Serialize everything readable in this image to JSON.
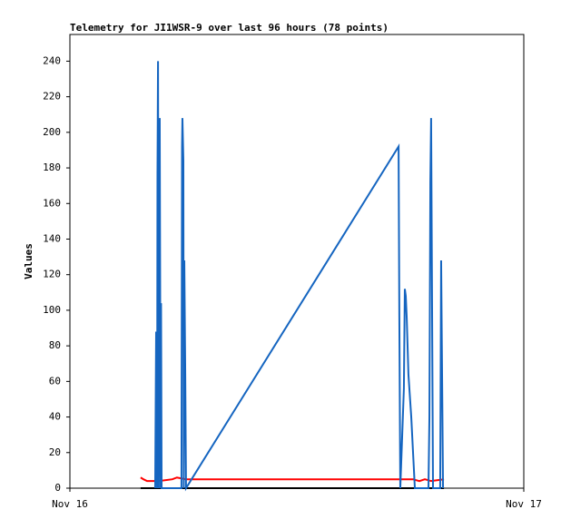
{
  "chart_data": {
    "type": "line",
    "title": "Telemetry for JI1WSR-9 over last 96 hours (78 points)",
    "y_label": "Values",
    "xlim": [
      0,
      24
    ],
    "xticks": [
      {
        "value": 0,
        "label": "Nov 16"
      },
      {
        "value": 24,
        "label": "Nov 17"
      }
    ],
    "ylim": [
      0,
      255
    ],
    "yticks": [
      0,
      20,
      40,
      60,
      80,
      100,
      120,
      140,
      160,
      180,
      200,
      220,
      240
    ],
    "series": [
      {
        "color": "#000000",
        "x": [
          3.74,
          19.78
        ],
        "values": [
          0,
          0
        ]
      },
      {
        "color": "#ff0000",
        "x": [
          3.74,
          3.89,
          4.08,
          4.7,
          5.42,
          5.66,
          6.14,
          10.7,
          15.5,
          18.14,
          18.48,
          18.77,
          19.1,
          19.78
        ],
        "values": [
          6,
          5,
          4,
          4,
          5,
          6,
          5,
          5,
          5,
          5,
          4,
          5,
          4,
          5
        ]
      },
      {
        "color": "#1565c0",
        "x": [
          4.51,
          4.56,
          4.61,
          4.63,
          4.66,
          4.7,
          4.75,
          4.8,
          4.82,
          4.85,
          5.9,
          5.93,
          5.95,
          6.0,
          6.02,
          6.05,
          6.1,
          6.14,
          17.38,
          17.42,
          17.47,
          17.66,
          17.71,
          17.76,
          17.81,
          17.9,
          18.05,
          18.24,
          18.96,
          19.01,
          19.06,
          19.1,
          19.15,
          19.2,
          19.58,
          19.63,
          19.68,
          19.73
        ],
        "values": [
          0,
          88,
          0,
          176,
          240,
          0,
          208,
          0,
          104,
          0,
          0,
          192,
          208,
          184,
          0,
          128,
          64,
          0,
          192,
          96,
          0,
          56,
          112,
          108,
          96,
          64,
          40,
          0,
          0,
          40,
          172,
          208,
          104,
          0,
          0,
          128,
          64,
          0
        ]
      }
    ]
  }
}
